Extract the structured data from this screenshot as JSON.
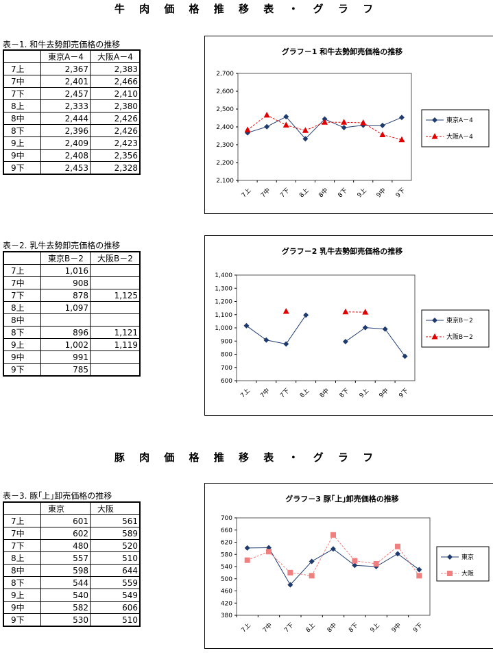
{
  "sections": {
    "beef_title": "牛 肉 価 格 推 移 表 ・ グ ラ フ",
    "pork_title": "豚 肉 価 格 推 移 表 ・ グ ラ フ"
  },
  "tables": [
    {
      "caption": "表－1. 和牛去勢卸売価格の推移",
      "headers": [
        "",
        "東京A－4",
        "大阪A－4"
      ],
      "rows": [
        [
          "7上",
          "2,367",
          "2,383"
        ],
        [
          "7中",
          "2,401",
          "2,466"
        ],
        [
          "7下",
          "2,457",
          "2,410"
        ],
        [
          "8上",
          "2,333",
          "2,380"
        ],
        [
          "8中",
          "2,444",
          "2,426"
        ],
        [
          "8下",
          "2,396",
          "2,426"
        ],
        [
          "9上",
          "2,409",
          "2,423"
        ],
        [
          "9中",
          "2,408",
          "2,356"
        ],
        [
          "9下",
          "2,453",
          "2,328"
        ]
      ]
    },
    {
      "caption": "表－2. 乳牛去勢卸売価格の推移",
      "headers": [
        "",
        "東京B－2",
        "大阪B－2"
      ],
      "rows": [
        [
          "7上",
          "1,016",
          ""
        ],
        [
          "7中",
          "908",
          ""
        ],
        [
          "7下",
          "878",
          "1,125"
        ],
        [
          "8上",
          "1,097",
          ""
        ],
        [
          "8中",
          "",
          ""
        ],
        [
          "8下",
          "896",
          "1,121"
        ],
        [
          "9上",
          "1,002",
          "1,119"
        ],
        [
          "9中",
          "991",
          ""
        ],
        [
          "9下",
          "785",
          ""
        ]
      ]
    },
    {
      "caption": "表－3. 豚｢上｣卸売価格の推移",
      "headers": [
        "",
        "東京",
        "大阪"
      ],
      "rows": [
        [
          "7上",
          "601",
          "561"
        ],
        [
          "7中",
          "602",
          "589"
        ],
        [
          "7下",
          "480",
          "520"
        ],
        [
          "8上",
          "557",
          "510"
        ],
        [
          "8中",
          "598",
          "644"
        ],
        [
          "8下",
          "544",
          "559"
        ],
        [
          "9上",
          "540",
          "549"
        ],
        [
          "9中",
          "582",
          "606"
        ],
        [
          "9下",
          "530",
          "510"
        ]
      ]
    }
  ],
  "chart_data": [
    {
      "type": "line",
      "title": "グラフ－1 和牛去勢卸売価格の推移",
      "categories": [
        "7上",
        "7中",
        "7下",
        "8上",
        "8中",
        "8下",
        "9上",
        "9中",
        "9下"
      ],
      "ylim": [
        2100,
        2700
      ],
      "yticks": [
        2100,
        2200,
        2300,
        2400,
        2500,
        2600,
        2700
      ],
      "ytick_labels": [
        "2,100",
        "2,200",
        "2,300",
        "2,400",
        "2,500",
        "2,600",
        "2,700"
      ],
      "legend": "right",
      "series": [
        {
          "name": "東京A－4",
          "color": "#1f3b6e",
          "marker": "diamond",
          "dashed": false,
          "values": [
            2367,
            2401,
            2457,
            2333,
            2444,
            2396,
            2409,
            2408,
            2453
          ]
        },
        {
          "name": "大阪A－4",
          "color": "#e00000",
          "marker": "triangle",
          "dashed": true,
          "values": [
            2383,
            2466,
            2410,
            2380,
            2426,
            2426,
            2423,
            2356,
            2328
          ]
        }
      ]
    },
    {
      "type": "line",
      "title": "グラフ－2 乳牛去勢卸売価格の推移",
      "categories": [
        "7上",
        "7中",
        "7下",
        "8上",
        "8中",
        "8下",
        "9上",
        "9中",
        "9下"
      ],
      "ylim": [
        600,
        1400
      ],
      "yticks": [
        600,
        700,
        800,
        900,
        1000,
        1100,
        1200,
        1300,
        1400
      ],
      "ytick_labels": [
        "600",
        "700",
        "800",
        "900",
        "1,000",
        "1,100",
        "1,200",
        "1,300",
        "1,400"
      ],
      "legend": "right",
      "series": [
        {
          "name": "東京B－2",
          "color": "#1f3b6e",
          "marker": "diamond",
          "dashed": false,
          "values": [
            1016,
            908,
            878,
            1097,
            null,
            896,
            1002,
            991,
            785
          ]
        },
        {
          "name": "大阪B－2",
          "color": "#e00000",
          "marker": "triangle",
          "dashed": true,
          "values": [
            null,
            null,
            1125,
            null,
            null,
            1121,
            1119,
            null,
            null
          ]
        }
      ]
    },
    {
      "type": "line",
      "title": "グラフ－3 豚｢上｣卸売価格の推移",
      "categories": [
        "7上",
        "7中",
        "7下",
        "8上",
        "8中",
        "8下",
        "9上",
        "9中",
        "9下"
      ],
      "ylim": [
        380,
        700
      ],
      "yticks": [
        380,
        420,
        460,
        500,
        540,
        580,
        620,
        660,
        700
      ],
      "ytick_labels": [
        "380",
        "420",
        "460",
        "500",
        "540",
        "580",
        "620",
        "660",
        "700"
      ],
      "legend": "right",
      "series": [
        {
          "name": "東京",
          "color": "#1f3b6e",
          "marker": "diamond",
          "dashed": false,
          "values": [
            601,
            602,
            480,
            557,
            598,
            544,
            540,
            582,
            530
          ]
        },
        {
          "name": "大阪",
          "color": "#f08080",
          "marker": "square",
          "dashed": true,
          "values": [
            561,
            589,
            520,
            510,
            644,
            559,
            549,
            606,
            510
          ]
        }
      ]
    }
  ]
}
